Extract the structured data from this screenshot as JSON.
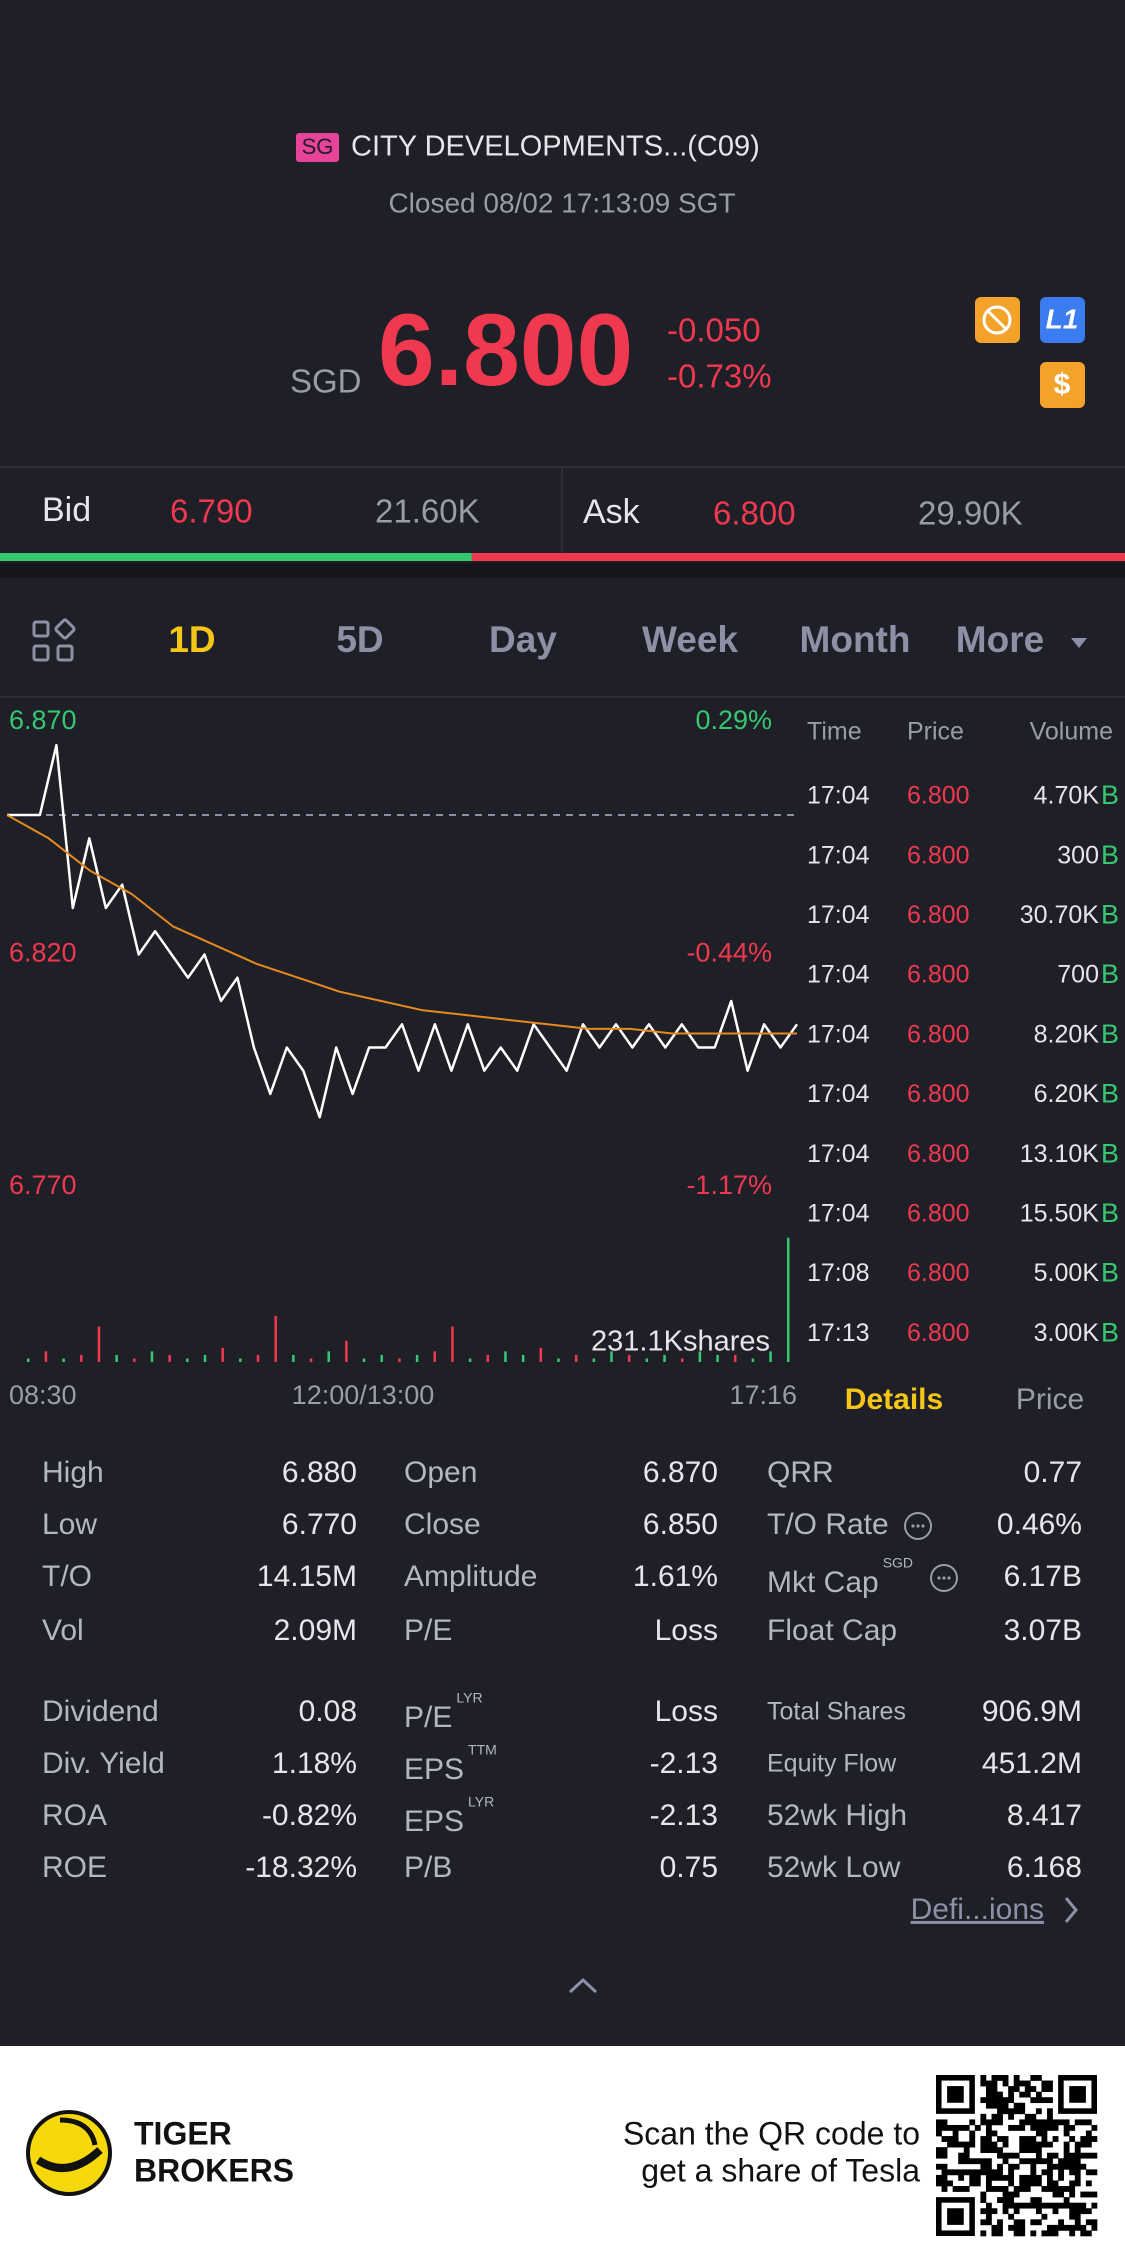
{
  "header": {
    "exchange": "SG",
    "name": "CITY DEVELOPMENTS...(C09)",
    "status": "Closed 08/02 17:13:09 SGT",
    "currency": "SGD",
    "price": "6.800",
    "change": "-0.050",
    "change_pct": "-0.73%",
    "badges": [
      "L1",
      "$"
    ]
  },
  "bid_ask": {
    "bid_label": "Bid",
    "bid": "6.790",
    "bid_size": "21.60K",
    "ask_label": "Ask",
    "ask": "6.800",
    "ask_size": "29.90K"
  },
  "tabs": {
    "items": [
      "1D",
      "5D",
      "Day",
      "Week",
      "Month",
      "More"
    ],
    "active": 0
  },
  "chart_data": {
    "type": "line",
    "ylim": [
      6.77,
      6.87
    ],
    "yticks": [
      {
        "value": 6.87,
        "label": "6.870"
      },
      {
        "value": 6.82,
        "label": "6.820"
      },
      {
        "value": 6.77,
        "label": "6.770"
      }
    ],
    "y2lim": [
      -1.17,
      0.29
    ],
    "y2ticks": [
      {
        "value": 0.29,
        "label": "0.29%"
      },
      {
        "value": -0.44,
        "label": "-0.44%"
      },
      {
        "value": -1.17,
        "label": "-1.17%"
      }
    ],
    "x_labels": [
      "08:30",
      "12:00/13:00",
      "17:16"
    ],
    "series": [
      {
        "color": "#ffffff",
        "values": [
          6.85,
          6.85,
          6.85,
          6.865,
          6.83,
          6.845,
          6.83,
          6.835,
          6.82,
          6.825,
          6.82,
          6.815,
          6.82,
          6.81,
          6.815,
          6.8,
          6.79,
          6.8,
          6.795,
          6.785,
          6.8,
          6.79,
          6.8,
          6.8,
          6.805,
          6.795,
          6.805,
          6.795,
          6.805,
          6.795,
          6.8,
          6.795,
          6.805,
          6.8,
          6.795,
          6.805,
          6.8,
          6.805,
          6.8,
          6.805,
          6.8,
          6.805,
          6.8,
          6.8,
          6.81,
          6.795,
          6.805,
          6.8,
          6.805
        ]
      },
      {
        "color": "#e8891f",
        "values": [
          6.85,
          6.845,
          6.838,
          6.833,
          6.826,
          6.822,
          6.818,
          6.815,
          6.812,
          6.81,
          6.808,
          6.807,
          6.806,
          6.805,
          6.804,
          6.804,
          6.803,
          6.803,
          6.803,
          6.803
        ]
      }
    ],
    "volume": {
      "label": "231.1Kshares",
      "vlim": [
        0,
        40
      ],
      "values": [
        1,
        3,
        1,
        2,
        10,
        2,
        1,
        3,
        2,
        1,
        2,
        4,
        1,
        2,
        13,
        2,
        1,
        3,
        6,
        1,
        2,
        1,
        2,
        3,
        10,
        1,
        2,
        3,
        2,
        4,
        1,
        2,
        1,
        3,
        2,
        1,
        2,
        1,
        3,
        2,
        2,
        1,
        3,
        35
      ],
      "colors": [
        "#35c871",
        "#f0384f",
        "#35c871",
        "#f0384f",
        "#f0384f",
        "#35c871",
        "#f0384f",
        "#35c871",
        "#f0384f",
        "#35c871",
        "#35c871",
        "#f0384f",
        "#35c871",
        "#f0384f",
        "#f0384f",
        "#35c871",
        "#f0384f",
        "#35c871",
        "#f0384f",
        "#35c871",
        "#35c871",
        "#f0384f",
        "#35c871",
        "#f0384f",
        "#f0384f",
        "#35c871",
        "#f0384f",
        "#35c871",
        "#35c871",
        "#f0384f",
        "#35c871",
        "#f0384f",
        "#35c871",
        "#35c871",
        "#f0384f",
        "#35c871",
        "#35c871",
        "#f0384f",
        "#35c871",
        "#35c871",
        "#f0384f",
        "#35c871",
        "#35c871",
        "#35c871"
      ]
    }
  },
  "trades": {
    "headers": [
      "Time",
      "Price",
      "Volume"
    ],
    "rows": [
      [
        "17:04",
        "6.800",
        "4.70K",
        "B"
      ],
      [
        "17:04",
        "6.800",
        "300",
        "B"
      ],
      [
        "17:04",
        "6.800",
        "30.70K",
        "B"
      ],
      [
        "17:04",
        "6.800",
        "700",
        "B"
      ],
      [
        "17:04",
        "6.800",
        "8.20K",
        "B"
      ],
      [
        "17:04",
        "6.800",
        "6.20K",
        "B"
      ],
      [
        "17:04",
        "6.800",
        "13.10K",
        "B"
      ],
      [
        "17:04",
        "6.800",
        "15.50K",
        "B"
      ],
      [
        "17:08",
        "6.800",
        "5.00K",
        "B"
      ],
      [
        "17:13",
        "6.800",
        "3.00K",
        "B"
      ]
    ]
  },
  "detail_tabs": [
    "Details",
    "Price"
  ],
  "stats": {
    "columns": [
      [
        {
          "label": "High",
          "value": "6.880"
        },
        {
          "label": "Low",
          "value": "6.770"
        },
        {
          "label": "T/O",
          "value": "14.15M"
        },
        {
          "label": "Vol",
          "value": "2.09M"
        },
        {
          "label": "Dividend",
          "value": "0.08"
        },
        {
          "label": "Div. Yield",
          "value": "1.18%"
        },
        {
          "label": "ROA",
          "value": "-0.82%"
        },
        {
          "label": "ROE",
          "value": "-18.32%"
        }
      ],
      [
        {
          "label": "Open",
          "value": "6.870"
        },
        {
          "label": "Close",
          "value": "6.850"
        },
        {
          "label": "Amplitude",
          "value": "1.61%"
        },
        {
          "label": "P/E",
          "value": "Loss"
        },
        {
          "label": "P/E",
          "sup": "LYR",
          "value": "Loss"
        },
        {
          "label": "EPS",
          "sup": "TTM",
          "value": "-2.13"
        },
        {
          "label": "EPS",
          "sup": "LYR",
          "value": "-2.13"
        },
        {
          "label": "P/B",
          "value": "0.75"
        }
      ],
      [
        {
          "label": "QRR",
          "value": "0.77"
        },
        {
          "label": "T/O Rate",
          "value": "0.46%"
        },
        {
          "label": "Mkt Cap",
          "sup": "SGD",
          "value": "6.17B"
        },
        {
          "label": "Float Cap",
          "value": "3.07B"
        },
        {
          "label": "Total Shares",
          "value": "906.9M"
        },
        {
          "label": "Equity Flow",
          "value": "451.2M"
        },
        {
          "label": "52wk High",
          "value": "8.417"
        },
        {
          "label": "52wk Low",
          "value": "6.168"
        }
      ]
    ],
    "link": "Defi...ions"
  },
  "footer": {
    "brand": [
      "TIGER",
      "BROKERS"
    ],
    "promo": [
      "Scan the QR code to",
      "get a share of Tesla"
    ]
  }
}
